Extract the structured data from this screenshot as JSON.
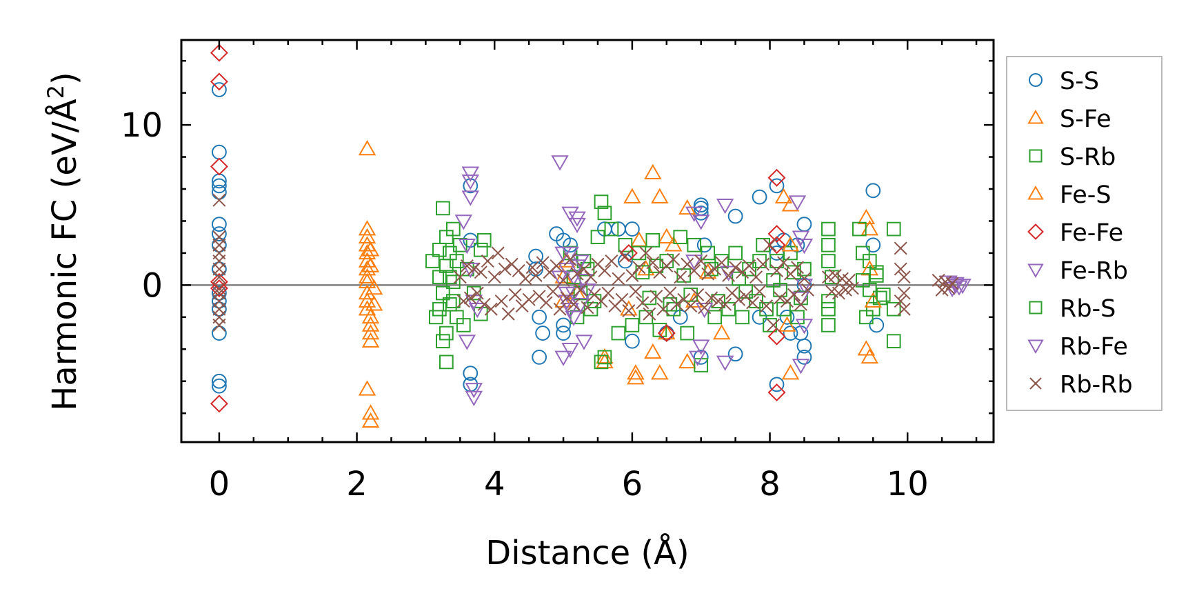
{
  "chart_data": {
    "type": "scatter",
    "xlabel": "Distance (Å)",
    "ylabel": {
      "main": "Harmonic FC (eV/Å",
      "sup": "2",
      "close": ")"
    },
    "xlim": [
      -0.55,
      11.25
    ],
    "ylim": [
      -9.8,
      15.3
    ],
    "xticks": [
      0,
      2,
      4,
      6,
      8,
      10
    ],
    "yticks": [
      0,
      10
    ],
    "xtick_labels": [
      "0",
      "2",
      "4",
      "6",
      "8",
      "10"
    ],
    "ytick_labels": [
      "0",
      "10"
    ],
    "x_minor_step": 0.5,
    "y_minor_step": 2,
    "zero_line": true,
    "grid": false,
    "legend_position": "right",
    "legend": [
      "S-S",
      "S-Fe",
      "S-Rb",
      "Fe-S",
      "Fe-Fe",
      "Fe-Rb",
      "Rb-S",
      "Rb-Fe",
      "Rb-Rb"
    ],
    "series": [
      {
        "name": "S-S",
        "marker": "circle",
        "color": "#1f77b4",
        "x": [
          0,
          0,
          0,
          0,
          0,
          0,
          0,
          0,
          0,
          0,
          0,
          0,
          0,
          0,
          0,
          3.65,
          3.65,
          3.65,
          3.65,
          4.6,
          4.6,
          4.65,
          4.65,
          4.7,
          4.9,
          5.0,
          5.0,
          5.0,
          5.1,
          5.6,
          5.8,
          5.9,
          6.0,
          6.0,
          6.5,
          6.7,
          7.0,
          7.0,
          7.0,
          7.0,
          7.05,
          7.5,
          7.5,
          7.85,
          7.85,
          8.1,
          8.1,
          8.1,
          8.2,
          8.25,
          8.3,
          8.4,
          8.45,
          8.5,
          8.5,
          8.5,
          8.5,
          9.5,
          9.5,
          9.55
        ],
        "y": [
          12.2,
          8.3,
          6.5,
          6.2,
          5.8,
          3.8,
          3.2,
          2.5,
          1.0,
          -0.5,
          -1.0,
          -1.5,
          -3.0,
          -6.0,
          -6.3,
          6.2,
          -5.5,
          -6.2,
          2.8,
          1.8,
          1.0,
          -2.0,
          -4.5,
          -3.0,
          3.2,
          2.8,
          -2.5,
          -3.0,
          2.5,
          3.5,
          3.5,
          1.5,
          3.5,
          -3.5,
          -3.0,
          -2.0,
          5.0,
          4.8,
          -4.5,
          4.5,
          2.5,
          4.3,
          -4.3,
          5.5,
          -2.0,
          6.2,
          -6.2,
          2.0,
          2.8,
          -2.0,
          -3.0,
          2.5,
          -3.0,
          3.8,
          -3.8,
          -4.5,
          0.0,
          5.9,
          2.5,
          -2.5
        ]
      },
      {
        "name": "S-Fe",
        "marker": "triangle-up",
        "color": "#ff7f0e",
        "x": [
          2.15,
          2.15,
          2.15,
          2.15,
          2.15,
          2.15,
          2.15,
          2.15,
          2.15,
          2.15,
          2.15,
          2.15,
          2.2,
          2.2,
          2.2,
          2.2,
          2.2,
          2.2,
          2.2,
          5.0,
          5.0,
          5.2,
          5.6,
          5.6,
          6.0,
          6.05,
          6.05,
          6.1,
          6.3,
          6.3,
          6.4,
          6.4,
          6.5,
          6.5,
          6.6,
          6.8,
          6.8,
          7.3,
          8.2,
          8.25,
          8.3,
          8.3,
          9.4,
          9.4,
          9.45,
          9.45
        ],
        "y": [
          8.5,
          3.5,
          3.0,
          2.5,
          2.0,
          1.5,
          1.0,
          0.5,
          -0.5,
          -1.0,
          -1.5,
          -6.5,
          -8.0,
          -8.5,
          -2.0,
          -2.5,
          -3.0,
          -3.5,
          2.2,
          0.5,
          -1.0,
          -0.5,
          -4.5,
          -4.8,
          5.5,
          -5.5,
          -5.8,
          2.8,
          7.0,
          -4.2,
          5.5,
          -5.5,
          3.0,
          -3.0,
          2.5,
          4.8,
          -4.8,
          -3.0,
          5.5,
          -2.5,
          5.0,
          -5.5,
          4.2,
          -4.0,
          3.5,
          -4.5
        ]
      },
      {
        "name": "S-Rb",
        "marker": "square",
        "color": "#2ca02c",
        "x": [
          3.1,
          3.15,
          3.2,
          3.2,
          3.25,
          3.25,
          3.3,
          3.3,
          3.3,
          3.35,
          3.35,
          3.4,
          3.4,
          3.45,
          3.45,
          3.5,
          3.55,
          3.6,
          3.7,
          3.8,
          3.8,
          3.85,
          5.1,
          5.2,
          5.3,
          5.4,
          5.5,
          5.55,
          5.55,
          5.6,
          5.6,
          5.7,
          5.8,
          5.9,
          6.0,
          6.1,
          6.2,
          6.3,
          6.4,
          6.5,
          6.6,
          6.7,
          6.8,
          6.9,
          7.0,
          7.1,
          7.2,
          7.3,
          7.4,
          7.5,
          7.6,
          7.7,
          7.8,
          7.9,
          8.0,
          8.1,
          8.2,
          8.3,
          8.4,
          8.5,
          8.85,
          8.85,
          8.85,
          8.85,
          8.85,
          8.85,
          9.3,
          9.35,
          9.4,
          9.45,
          9.5,
          9.55,
          9.6,
          9.8,
          9.8,
          9.8
        ],
        "y": [
          1.5,
          -2.0,
          2.2,
          -1.5,
          4.8,
          -3.5,
          3.0,
          -3.0,
          -4.8,
          2.0,
          0.5,
          -1.0,
          3.5,
          1.5,
          -2.0,
          2.5,
          -2.5,
          1.0,
          -0.5,
          2.2,
          -1.8,
          2.8,
          2.0,
          -2.0,
          1.5,
          -1.5,
          3.0,
          5.2,
          -4.8,
          4.5,
          -4.5,
          3.5,
          -3.0,
          2.5,
          -2.5,
          2.0,
          -2.0,
          2.8,
          -2.8,
          1.5,
          -1.5,
          3.0,
          -3.0,
          2.5,
          -5.0,
          2.0,
          -2.0,
          1.5,
          -1.5,
          2.0,
          -2.0,
          1.0,
          -1.0,
          2.5,
          -2.5,
          1.5,
          -1.5,
          2.0,
          -2.0,
          1.0,
          3.5,
          2.5,
          1.5,
          -1.5,
          -2.5,
          -1.0,
          3.5,
          2.0,
          -2.0,
          1.5,
          -1.5,
          0.8,
          -0.8,
          3.5,
          -3.5,
          -1.5
        ]
      },
      {
        "name": "Fe-S",
        "marker": "triangle-up",
        "color": "#ff7f0e",
        "x": [
          2.2,
          2.25,
          2.15,
          2.25,
          5.05,
          5.95,
          6.2,
          6.9,
          7.1,
          8.3,
          9.45,
          9.5
        ],
        "y": [
          1.2,
          -1.2,
          0.2,
          -0.2,
          1.5,
          -1.5,
          1.0,
          -1.0,
          0.8,
          2.5,
          1.0,
          -1.0
        ]
      },
      {
        "name": "Fe-Fe",
        "marker": "diamond",
        "color": "#d62728",
        "x": [
          0,
          0,
          0,
          0,
          0,
          0,
          5.95,
          6.5,
          8.1,
          8.1,
          8.1,
          8.1,
          8.1
        ],
        "y": [
          14.5,
          12.7,
          7.4,
          0.2,
          -0.2,
          -7.4,
          2.0,
          -3.0,
          6.7,
          -6.7,
          3.2,
          -3.2,
          2.5
        ]
      },
      {
        "name": "Fe-Rb",
        "marker": "triangle-down",
        "color": "#9467bd",
        "x": [
          3.6,
          3.65,
          3.65,
          3.65,
          3.7,
          3.7,
          3.55,
          3.6,
          3.75,
          4.95,
          5.0,
          5.0,
          5.05,
          5.05,
          5.1,
          5.1,
          5.15,
          5.15,
          5.2,
          5.2,
          5.25,
          5.1,
          5.3,
          6.9,
          6.95,
          7.0,
          7.0,
          7.35,
          7.35,
          8.4,
          8.45,
          8.45,
          8.5,
          8.5,
          8.5,
          10.6,
          10.65,
          10.7,
          10.75,
          10.8
        ],
        "y": [
          2.5,
          7.0,
          6.5,
          5.5,
          -7.0,
          -6.5,
          4.0,
          -3.5,
          -1.5,
          7.7,
          2.0,
          -4.5,
          1.0,
          -1.0,
          4.5,
          -4.0,
          0.5,
          -0.5,
          4.2,
          3.8,
          1.5,
          -1.5,
          -3.5,
          4.5,
          -4.5,
          4.0,
          -3.8,
          5.0,
          -4.8,
          5.2,
          -5.0,
          3.0,
          2.5,
          -2.5,
          0.0,
          0.2,
          -0.2,
          0.1,
          -0.1,
          0.0
        ]
      },
      {
        "name": "Rb-S",
        "marker": "square",
        "color": "#2ca02c",
        "x": [
          3.2,
          3.25,
          3.3,
          3.35,
          3.4,
          5.15,
          5.25,
          5.35,
          5.45,
          6.15,
          6.25,
          6.35,
          6.55,
          6.75,
          6.85,
          7.15,
          7.25,
          7.55,
          7.65,
          7.85,
          7.95,
          8.05,
          8.15,
          8.35,
          8.45,
          8.9,
          9.35,
          9.45,
          9.55,
          9.65
        ],
        "y": [
          0.5,
          -0.5,
          1.2,
          -1.2,
          0.2,
          0.5,
          -0.5,
          1.0,
          -1.0,
          0.8,
          -0.8,
          1.2,
          -1.2,
          0.6,
          -0.6,
          1.0,
          -1.0,
          0.4,
          -0.4,
          1.5,
          -1.5,
          0.3,
          -0.3,
          0.8,
          -0.8,
          0.5,
          0.3,
          -0.3,
          0.6,
          -0.6
        ]
      },
      {
        "name": "Rb-Fe",
        "marker": "triangle-down",
        "color": "#9467bd",
        "x": [
          3.65,
          3.7,
          4.95,
          5.05,
          5.1,
          5.15,
          5.2,
          5.25,
          5.3,
          5.35,
          6.9,
          7.05,
          7.4,
          8.45,
          10.7
        ],
        "y": [
          1.0,
          -1.0,
          0.5,
          -0.5,
          2.0,
          -2.0,
          1.2,
          -1.2,
          0.3,
          -0.3,
          1.5,
          -1.5,
          0.8,
          -0.8,
          0.0
        ]
      },
      {
        "name": "Rb-Rb",
        "marker": "x",
        "color": "#8c564b",
        "x": [
          0,
          0,
          0,
          0,
          0,
          0,
          0,
          0,
          0,
          0,
          0,
          0,
          0,
          3.5,
          3.55,
          3.6,
          3.65,
          3.7,
          3.75,
          3.8,
          3.85,
          3.9,
          3.95,
          4.0,
          4.05,
          4.1,
          4.15,
          4.2,
          4.25,
          4.3,
          4.35,
          4.4,
          4.45,
          4.5,
          4.55,
          4.6,
          4.65,
          4.7,
          4.75,
          4.8,
          4.85,
          4.9,
          4.95,
          5.0,
          5.05,
          5.1,
          5.15,
          5.2,
          5.25,
          5.3,
          5.35,
          5.4,
          5.45,
          5.5,
          5.55,
          5.6,
          5.65,
          5.7,
          5.75,
          5.8,
          5.85,
          5.9,
          5.95,
          6.0,
          6.05,
          6.1,
          6.15,
          6.2,
          6.25,
          6.3,
          6.35,
          6.4,
          6.45,
          6.5,
          6.55,
          6.6,
          6.65,
          6.7,
          6.75,
          6.8,
          6.85,
          6.9,
          6.95,
          7.0,
          7.05,
          7.1,
          7.15,
          7.2,
          7.25,
          7.3,
          7.35,
          7.4,
          7.45,
          7.5,
          7.55,
          7.6,
          7.65,
          7.7,
          7.75,
          7.8,
          7.85,
          7.9,
          7.95,
          8.0,
          8.05,
          8.1,
          8.15,
          8.2,
          8.25,
          8.3,
          8.35,
          8.4,
          8.45,
          8.5,
          8.55,
          8.85,
          8.9,
          8.95,
          9.0,
          9.05,
          9.1,
          9.15,
          9.2,
          9.9,
          9.9,
          9.95,
          9.95,
          9.9,
          9.95,
          10.45,
          10.5,
          10.55,
          10.6,
          10.65
        ],
        "y": [
          5.3,
          3.0,
          2.5,
          2.0,
          1.5,
          1.0,
          0.5,
          -0.2,
          -0.5,
          -1.0,
          -1.5,
          -2.0,
          -2.5,
          0.5,
          -1.0,
          1.2,
          -0.8,
          1.0,
          -0.5,
          0.8,
          -1.2,
          1.5,
          -1.5,
          0.5,
          2.0,
          -1.0,
          1.0,
          -1.8,
          1.3,
          -0.6,
          0.9,
          -1.3,
          0.4,
          -0.9,
          1.1,
          0.6,
          -0.7,
          1.4,
          -1.1,
          0.8,
          -0.4,
          1.2,
          -1.5,
          0.3,
          -0.8,
          1.6,
          -1.2,
          0.7,
          -0.3,
          1.0,
          -1.4,
          0.5,
          -0.6,
          1.3,
          -1.0,
          0.9,
          -0.5,
          1.5,
          -1.3,
          0.4,
          -0.9,
          1.8,
          -1.6,
          0.6,
          -0.4,
          1.1,
          -1.1,
          2.0,
          -1.8,
          1.4,
          -0.7,
          0.8,
          -1.5,
          1.2,
          -0.5,
          1.6,
          -1.2,
          0.5,
          -0.9,
          1.3,
          -1.3,
          0.9,
          -0.6,
          1.5,
          -1.4,
          0.7,
          -0.8,
          1.0,
          -1.0,
          1.4,
          -1.2,
          0.6,
          -0.5,
          1.1,
          -0.9,
          0.8,
          -0.7,
          1.2,
          -1.1,
          0.5,
          -0.4,
          1.3,
          -1.3,
          2.5,
          -2.5,
          0.9,
          -0.8,
          1.4,
          -1.0,
          0.7,
          -0.6,
          1.1,
          -1.2,
          0.4,
          -0.3,
          0.5,
          -0.4,
          0.6,
          -0.5,
          0.4,
          -0.3,
          0.3,
          -0.2,
          2.3,
          1.0,
          0.5,
          -0.5,
          -1.0,
          -1.5,
          0.3,
          -0.3,
          0.2,
          -0.2,
          0.1
        ]
      }
    ]
  }
}
